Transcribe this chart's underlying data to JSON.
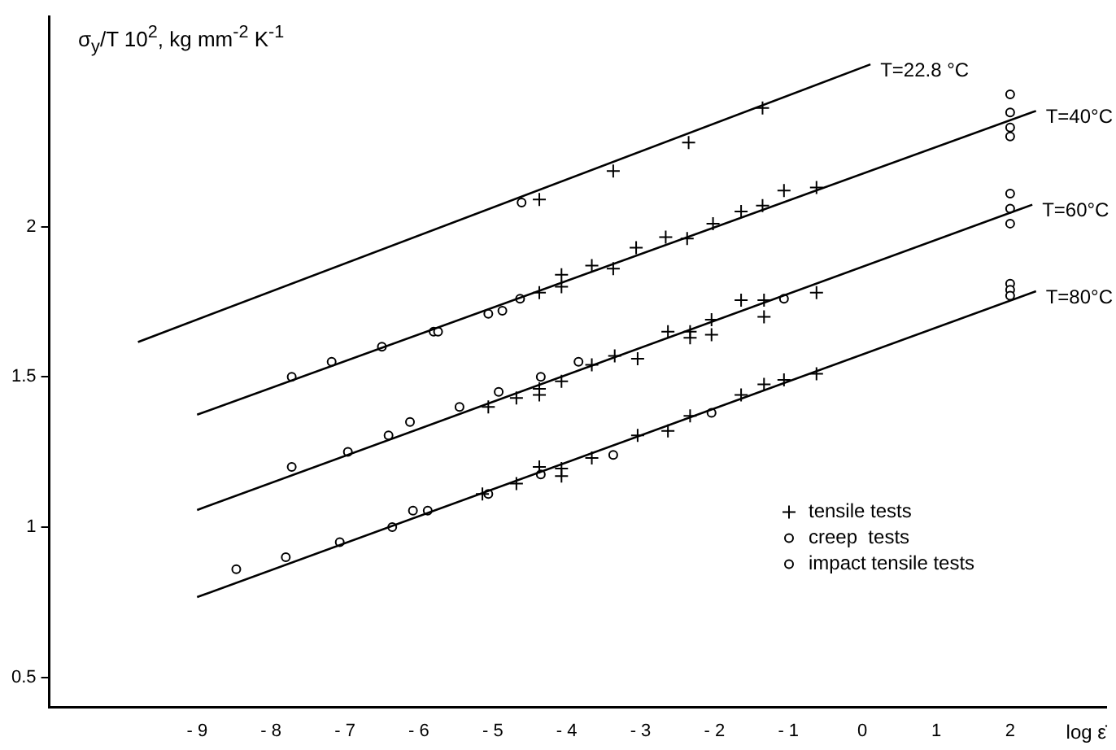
{
  "chart_data": {
    "type": "scatter",
    "ylabel": "σ$_{y}$/T 10$^{2}$, kg mm$^{-2}$ K$^{-1}$",
    "xlabel": "log ε̇",
    "xlim": [
      -11,
      3.3
    ],
    "xticks": [
      -9,
      -8,
      -7,
      -6,
      -5,
      -4,
      -3,
      -2,
      -1,
      0,
      1,
      2
    ],
    "ylim": [
      0.4,
      2.7
    ],
    "yticks": [
      0.5,
      1,
      1.5,
      2
    ],
    "grid": false,
    "legend": "bottom right",
    "series": [
      {
        "name": "T=22.8 °C",
        "type": "line",
        "marker": "none",
        "color": "#000000",
        "x": [
          -9.8,
          0.11
        ],
        "values": [
          1.616,
          2.54
        ]
      },
      {
        "name": "T=40°C",
        "type": "line",
        "marker": "none",
        "color": "#000000",
        "x": [
          -9,
          2.35
        ],
        "values": [
          1.374,
          2.385
        ]
      },
      {
        "name": "T=60°C",
        "type": "line",
        "marker": "none",
        "color": "#000000",
        "x": [
          -9,
          2.3
        ],
        "values": [
          1.057,
          2.073
        ]
      },
      {
        "name": "T=80°C",
        "type": "line",
        "marker": "none",
        "color": "#000000",
        "x": [
          -9,
          2.35
        ],
        "values": [
          0.767,
          1.785
        ]
      },
      {
        "name": "tensile tests",
        "type": "scatter",
        "marker": "cross",
        "color": "#000000",
        "x": [
          -4.37,
          -3.37,
          -2.35,
          -1.35,
          -4.37,
          -4.07,
          -4.07,
          -3.66,
          -3.37,
          -3.06,
          -2.66,
          -2.37,
          -2.02,
          -1.64,
          -1.35,
          -1.06,
          -0.62,
          -5.06,
          -4.68,
          -4.37,
          -4.37,
          -4.07,
          -3.66,
          -3.35,
          -3.04,
          -2.63,
          -2.33,
          -2.33,
          -2.04,
          -2.04,
          -1.64,
          -1.33,
          -1.33,
          -0.62,
          -5.14,
          -4.68,
          -4.37,
          -4.07,
          -4.07,
          -3.66,
          -3.04,
          -2.63,
          -2.33,
          -1.64,
          -1.33,
          -1.06,
          -0.62
        ],
        "values": [
          2.09,
          2.185,
          2.28,
          2.395,
          1.78,
          1.84,
          1.8,
          1.87,
          1.86,
          1.93,
          1.965,
          1.96,
          2.01,
          2.05,
          2.07,
          2.12,
          2.13,
          1.4,
          1.43,
          1.44,
          1.46,
          1.485,
          1.54,
          1.57,
          1.56,
          1.65,
          1.65,
          1.63,
          1.69,
          1.64,
          1.755,
          1.755,
          1.7,
          1.78,
          1.11,
          1.145,
          1.2,
          1.17,
          1.195,
          1.23,
          1.305,
          1.32,
          1.37,
          1.44,
          1.475,
          1.49,
          1.51
        ]
      },
      {
        "name": "creep  tests",
        "type": "scatter",
        "marker": "circle",
        "color": "#000000",
        "x": [
          -4.61,
          -7.72,
          -7.18,
          -6.5,
          -5.8,
          -5.74,
          -5.06,
          -4.87,
          -4.63,
          -7.72,
          -6.96,
          -6.41,
          -6.12,
          -5.45,
          -4.92,
          -4.35,
          -3.84,
          -8.47,
          -7.8,
          -7.07,
          -6.36,
          -6.08,
          -5.88,
          -4.35,
          -3.37
        ],
        "values": [
          2.08,
          1.5,
          1.55,
          1.6,
          1.65,
          1.65,
          1.71,
          1.72,
          1.76,
          1.2,
          1.25,
          1.305,
          1.35,
          1.4,
          1.45,
          1.5,
          1.55,
          0.86,
          0.9,
          0.95,
          1.0,
          1.055,
          1.055,
          1.175,
          1.24
        ]
      },
      {
        "name": "impact tensile tests",
        "type": "scatter",
        "marker": "circle",
        "color": "#000000",
        "x": [
          2,
          2,
          2,
          2,
          2,
          2,
          2,
          -1.06,
          2,
          2,
          2,
          -5.06,
          -2.04
        ],
        "values": [
          2.44,
          2.38,
          2.33,
          2.3,
          2.11,
          2.06,
          2.01,
          1.76,
          1.81,
          1.79,
          1.77,
          1.11,
          1.38
        ]
      }
    ]
  }
}
